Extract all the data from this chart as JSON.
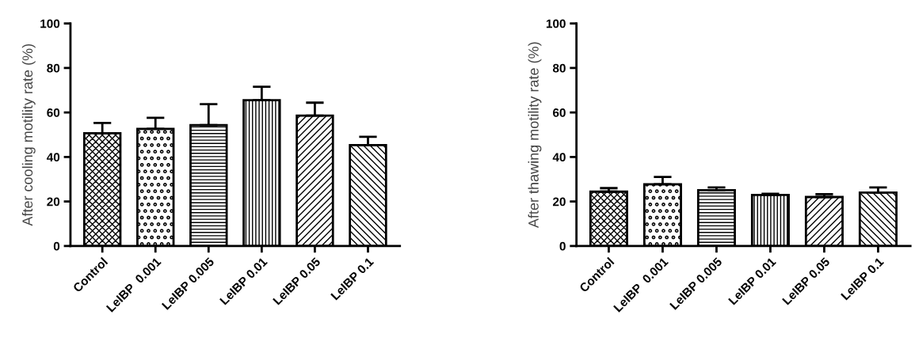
{
  "chart_data": [
    {
      "type": "bar",
      "ylabel": "After cooling motility rate (%)",
      "categories": [
        "Control",
        "LeIBP  0.001",
        "LeIBP 0.005",
        "LeIBP 0.01",
        "LeIBP 0.05",
        "LeIBP 0.1"
      ],
      "values": [
        50.7,
        52.6,
        54.3,
        65.5,
        58.6,
        45.3
      ],
      "errors": [
        [
          50.7,
          55.3
        ],
        [
          52.6,
          57.6
        ],
        [
          54.3,
          63.7
        ],
        [
          65.5,
          71.6
        ],
        [
          58.6,
          64.4
        ],
        [
          45.3,
          49.1
        ]
      ],
      "colors": [
        "#000000",
        "#000000",
        "#000000",
        "#000000",
        "#000000",
        "#000000"
      ],
      "ylim": [
        0,
        100
      ],
      "yticks": [
        0,
        20,
        40,
        60,
        80,
        100
      ],
      "grid": false
    },
    {
      "type": "bar",
      "ylabel": "After thawing motility rate (%)",
      "categories": [
        "Control",
        "LeIBP  0.001",
        "LeIBP 0.005",
        "LeIBP 0.01",
        "LeIBP 0.05",
        "LeIBP 0.1"
      ],
      "values": [
        24.4,
        27.7,
        25.1,
        22.9,
        22.0,
        24.0
      ],
      "errors": [
        [
          24.4,
          26.0
        ],
        [
          27.7,
          31.0
        ],
        [
          25.1,
          26.3
        ],
        [
          22.9,
          23.5
        ],
        [
          22.0,
          23.3
        ],
        [
          24.0,
          26.3
        ]
      ],
      "colors": [
        "#000000",
        "#000000",
        "#000000",
        "#000000",
        "#000000",
        "#000000"
      ],
      "ylim": [
        0,
        100
      ],
      "yticks": [
        0,
        20,
        40,
        60,
        80,
        100
      ],
      "grid": false
    }
  ]
}
